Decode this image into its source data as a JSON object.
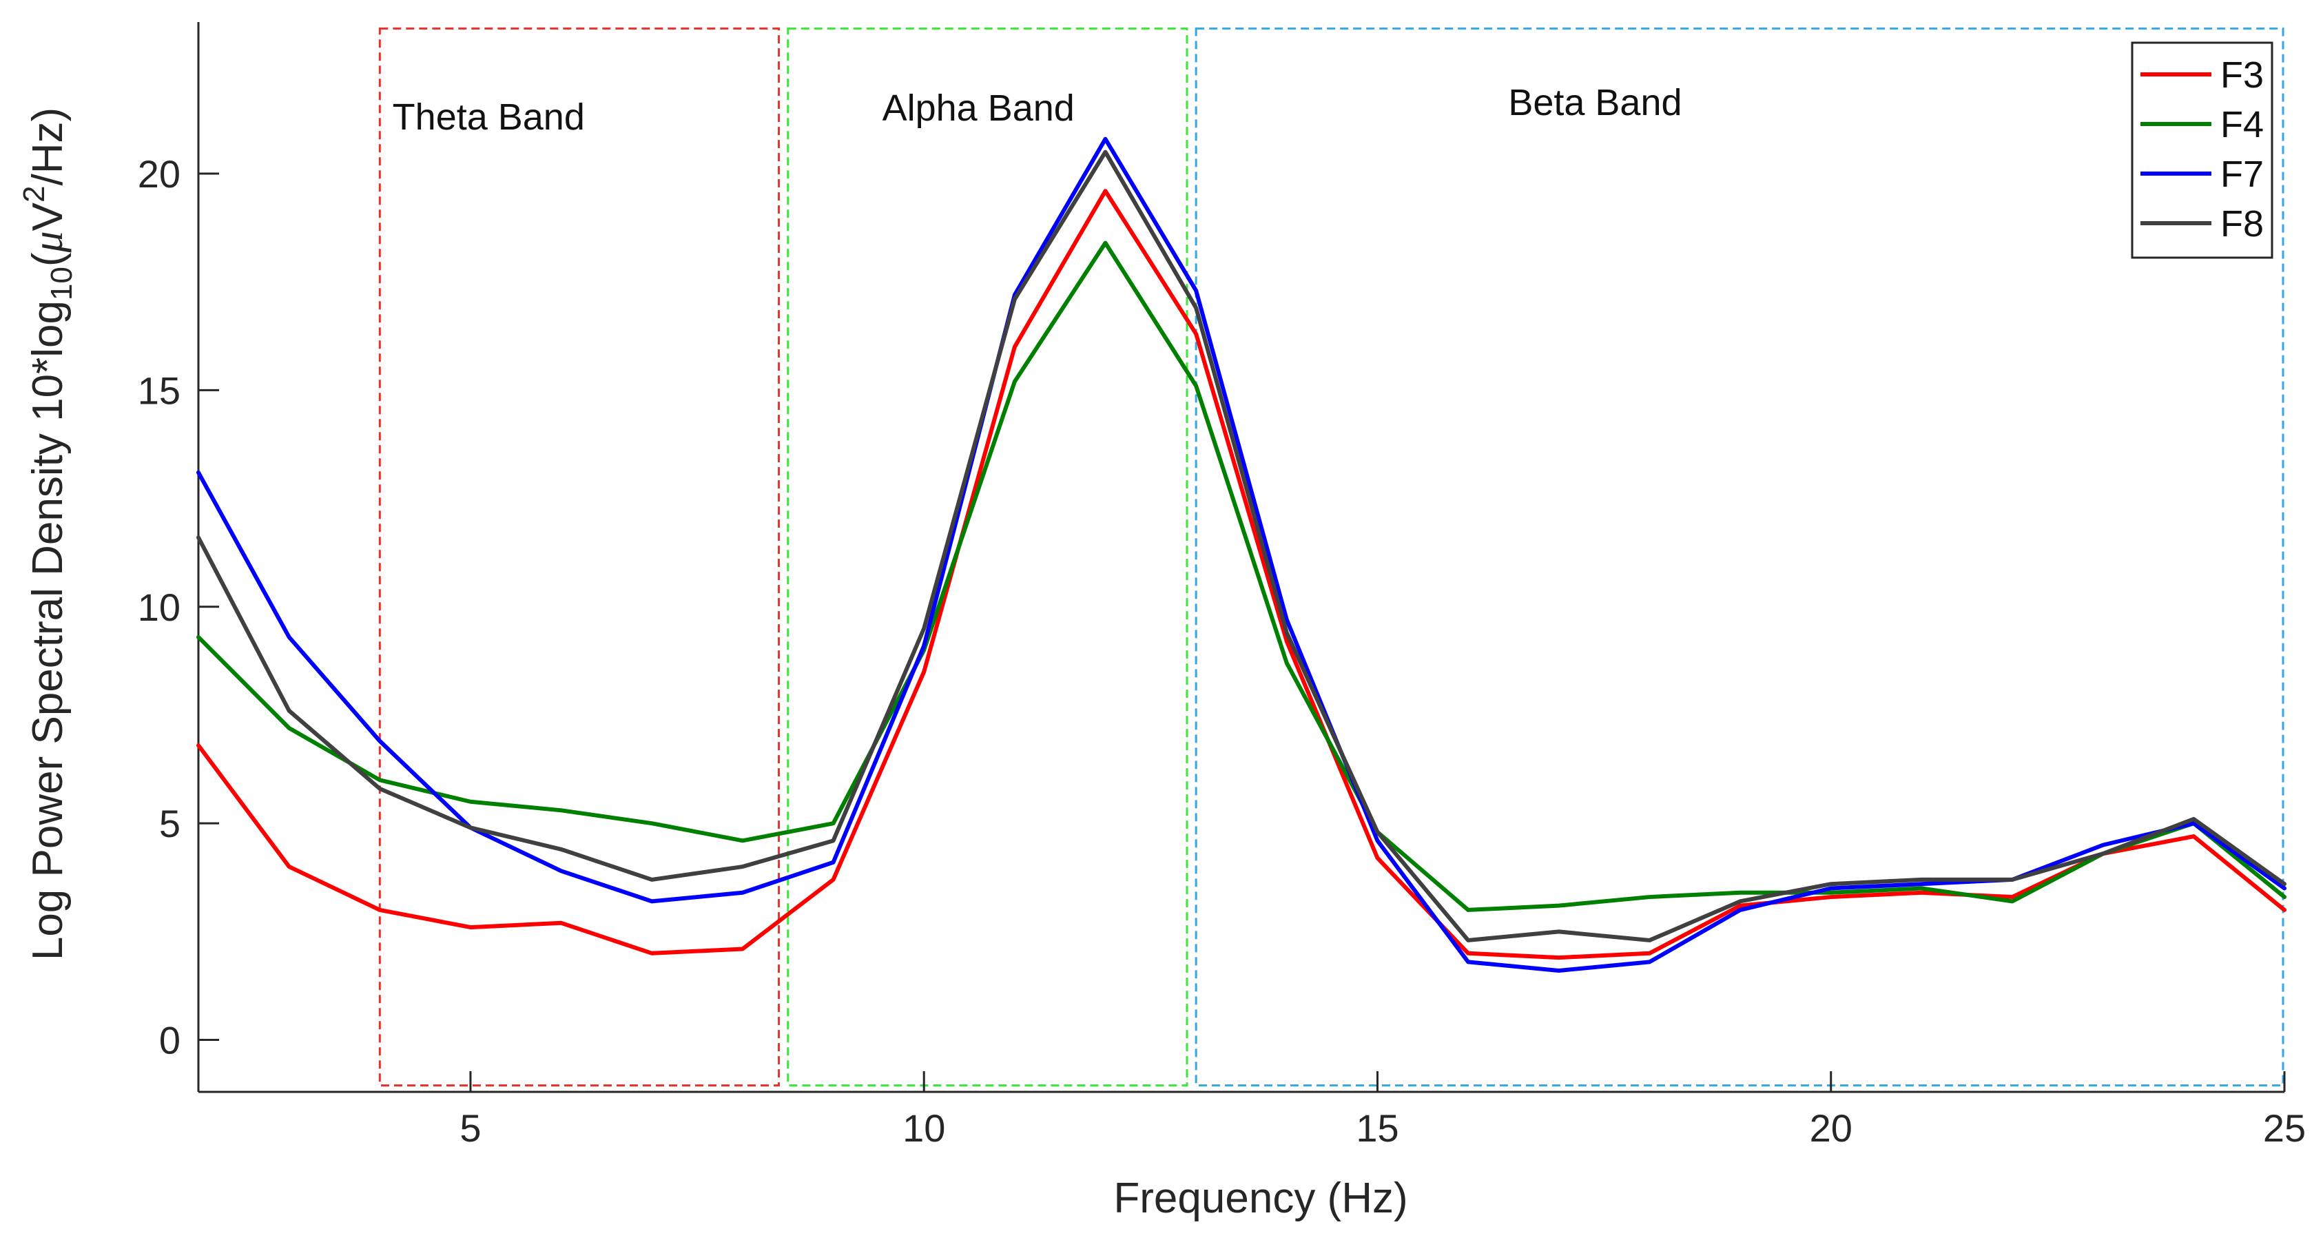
{
  "chart_data": {
    "type": "line",
    "xlabel": "Frequency (Hz)",
    "ylabel_main": "Log Power Spectral Density 10*log",
    "ylabel_sub": "10",
    "ylabel_open": "(",
    "ylabel_mu": "μ",
    "ylabel_v": "V",
    "ylabel_sup": "2",
    "ylabel_tail": "/Hz)",
    "xlim": [
      2,
      25
    ],
    "ylim": [
      -1.2,
      23.5
    ],
    "xticks": [
      5,
      10,
      15,
      20,
      25
    ],
    "yticks": [
      0,
      5,
      10,
      15,
      20
    ],
    "x": [
      2,
      3,
      4,
      5,
      6,
      7,
      8,
      9,
      10,
      11,
      12,
      13,
      14,
      15,
      16,
      17,
      18,
      19,
      20,
      21,
      22,
      23,
      24,
      25
    ],
    "series": [
      {
        "name": "F3",
        "color": "#ff0000",
        "values": [
          6.8,
          4.0,
          3.0,
          2.6,
          2.7,
          2.0,
          2.1,
          3.7,
          8.5,
          16.0,
          19.6,
          16.3,
          9.2,
          4.2,
          2.0,
          1.9,
          2.0,
          3.1,
          3.3,
          3.4,
          3.3,
          4.3,
          4.7,
          3.0
        ]
      },
      {
        "name": "F4",
        "color": "#008000",
        "values": [
          9.3,
          7.2,
          6.0,
          5.5,
          5.3,
          5.0,
          4.6,
          5.0,
          9.0,
          15.2,
          18.4,
          15.1,
          8.7,
          4.8,
          3.0,
          3.1,
          3.3,
          3.4,
          3.4,
          3.5,
          3.2,
          4.3,
          5.0,
          3.3
        ]
      },
      {
        "name": "F7",
        "color": "#0000ff",
        "values": [
          13.1,
          9.3,
          6.9,
          4.9,
          3.9,
          3.2,
          3.4,
          4.1,
          9.1,
          17.2,
          20.8,
          17.3,
          9.7,
          4.6,
          1.8,
          1.6,
          1.8,
          3.0,
          3.5,
          3.6,
          3.7,
          4.5,
          5.0,
          3.5
        ]
      },
      {
        "name": "F8",
        "color": "#404040",
        "values": [
          11.6,
          7.6,
          5.8,
          4.9,
          4.4,
          3.7,
          4.0,
          4.6,
          9.5,
          17.1,
          20.5,
          16.9,
          9.4,
          4.8,
          2.3,
          2.5,
          2.3,
          3.2,
          3.6,
          3.7,
          3.7,
          4.3,
          5.1,
          3.6
        ]
      }
    ],
    "bands": [
      {
        "label": "Theta Band",
        "x_start": 4,
        "x_end": 8.4,
        "color": "#e8312d",
        "label_x": 5.2
      },
      {
        "label": "Alpha Band",
        "x_start": 8.5,
        "x_end": 12.9,
        "color": "#3ae63a",
        "label_x": 10.6
      },
      {
        "label": "Beta Band",
        "x_start": 13.0,
        "x_end": 25,
        "color": "#35a7e6",
        "label_x": 17.4
      }
    ],
    "legend_position": "top-right"
  }
}
